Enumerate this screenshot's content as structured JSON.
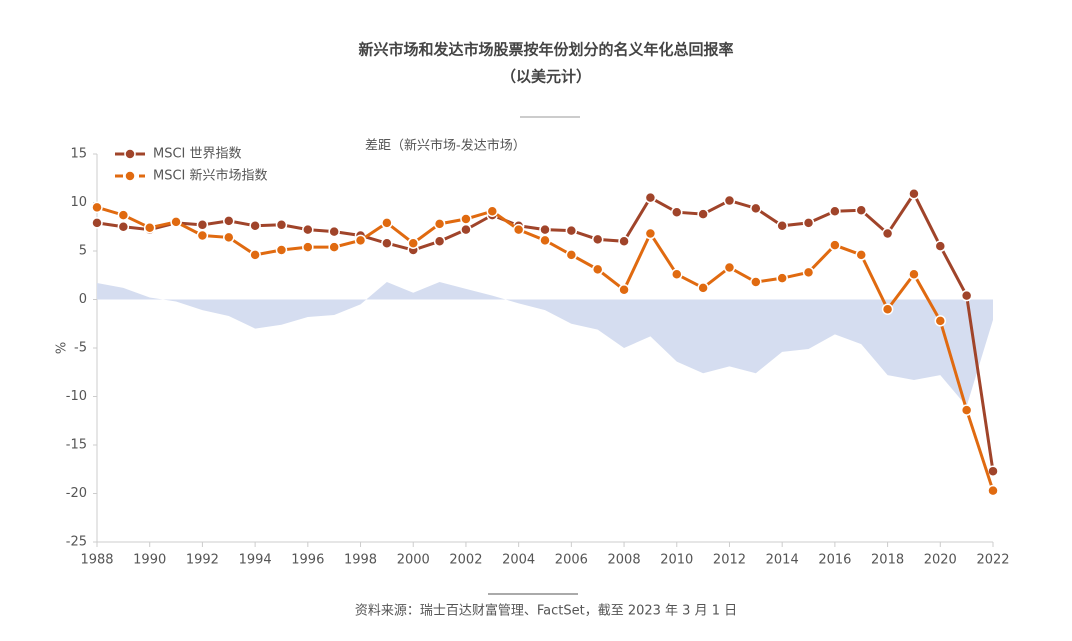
{
  "chart_data": {
    "type": "line",
    "title": "新兴市场和发达市场股票按年份划分的名义年化总回报率",
    "subtitle": "（以美元计）",
    "y_label": "%",
    "source": "资料来源：瑞士百达财富管理、FactSet，截至 2023 年 3 月 1 日",
    "x": [
      1988,
      1989,
      1990,
      1991,
      1992,
      1993,
      1994,
      1995,
      1996,
      1997,
      1998,
      1999,
      2000,
      2001,
      2002,
      2003,
      2004,
      2005,
      2006,
      2007,
      2008,
      2009,
      2010,
      2011,
      2012,
      2013,
      2014,
      2015,
      2016,
      2017,
      2018,
      2019,
      2020,
      2021,
      2022
    ],
    "series": [
      {
        "name": "MSCI 世界指数",
        "type": "line",
        "color": "#a0442a",
        "values": [
          7.9,
          7.5,
          7.2,
          7.9,
          7.7,
          8.1,
          7.6,
          7.7,
          7.2,
          7.0,
          6.6,
          5.8,
          5.1,
          6.0,
          7.2,
          8.7,
          7.6,
          7.2,
          7.1,
          6.2,
          6.0,
          10.5,
          9.0,
          8.8,
          10.2,
          9.4,
          7.6,
          7.9,
          9.1,
          9.2,
          6.8,
          10.9,
          5.5,
          0.4,
          -17.7
        ]
      },
      {
        "name": "MSCI 新兴市场指数",
        "type": "line",
        "color": "#e06a10",
        "values": [
          9.5,
          8.7,
          7.4,
          8.0,
          6.6,
          6.4,
          4.6,
          5.1,
          5.4,
          5.4,
          6.1,
          7.9,
          5.8,
          7.8,
          8.3,
          9.1,
          7.2,
          6.1,
          4.6,
          3.1,
          1.0,
          6.8,
          2.6,
          1.2,
          3.3,
          1.8,
          2.2,
          2.8,
          5.6,
          4.6,
          -1.0,
          2.6,
          -2.2,
          -11.4,
          -19.7
        ]
      },
      {
        "name": "差距（新兴市场-发达市场）",
        "type": "area",
        "color": "#d5ddf0",
        "values": [
          1.7,
          1.2,
          0.2,
          -0.2,
          -1.1,
          -1.7,
          -3.0,
          -2.6,
          -1.8,
          -1.6,
          -0.5,
          1.8,
          0.7,
          1.8,
          1.1,
          0.4,
          -0.4,
          -1.1,
          -2.5,
          -3.1,
          -5.0,
          -3.8,
          -6.4,
          -7.6,
          -6.9,
          -7.6,
          -5.4,
          -5.1,
          -3.6,
          -4.6,
          -7.8,
          -8.3,
          -7.8,
          -11.0,
          -2.1
        ]
      }
    ],
    "xlim": [
      1988,
      2022
    ],
    "xticks": [
      1988,
      1990,
      1992,
      1994,
      1996,
      1998,
      2000,
      2002,
      2004,
      2006,
      2008,
      2010,
      2012,
      2014,
      2016,
      2018,
      2020,
      2022
    ],
    "ylim": [
      -25,
      15
    ],
    "yticks": [
      -25,
      -20,
      -15,
      -10,
      -5,
      0,
      5,
      10,
      15
    ]
  }
}
